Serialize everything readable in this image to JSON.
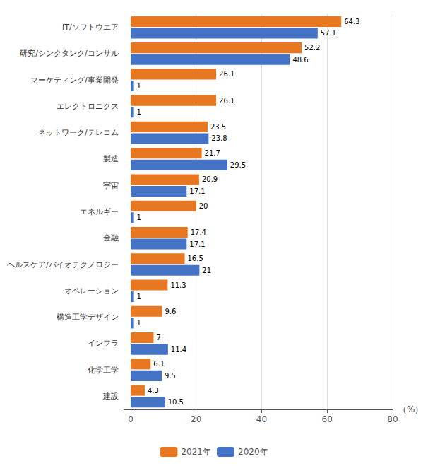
{
  "chart_data": {
    "type": "bar",
    "orientation": "horizontal",
    "categories": [
      "IT/ソフトウエア",
      "研究/シンクタンク/コンサル",
      "マーケティング/事業開発",
      "エレクトロニクス",
      "ネットワーク/テレコム",
      "製造",
      "宇宙",
      "エネルギー",
      "金融",
      "ヘルスケア/バイオテクノロジー",
      "オペレーション",
      "構造工学デザイン",
      "インフラ",
      "化学工学",
      "建設"
    ],
    "series": [
      {
        "name": "2021年",
        "color": "#E87722",
        "values": [
          64.3,
          52.2,
          26.1,
          26.1,
          23.5,
          21.7,
          20.9,
          20,
          17.4,
          16.5,
          11.3,
          9.6,
          7,
          6.1,
          4.3
        ]
      },
      {
        "name": "2020年",
        "color": "#4472C4",
        "values": [
          57.1,
          48.6,
          1,
          1,
          23.8,
          29.5,
          17.1,
          1,
          17.1,
          21,
          1,
          1,
          11.4,
          9.5,
          10.5
        ]
      }
    ],
    "xlabel": "（%）",
    "xlim": [
      -2,
      80
    ],
    "xticks": [
      0,
      20,
      40,
      60,
      80
    ],
    "data_labels": true,
    "grid": true,
    "legend": "bottom"
  }
}
